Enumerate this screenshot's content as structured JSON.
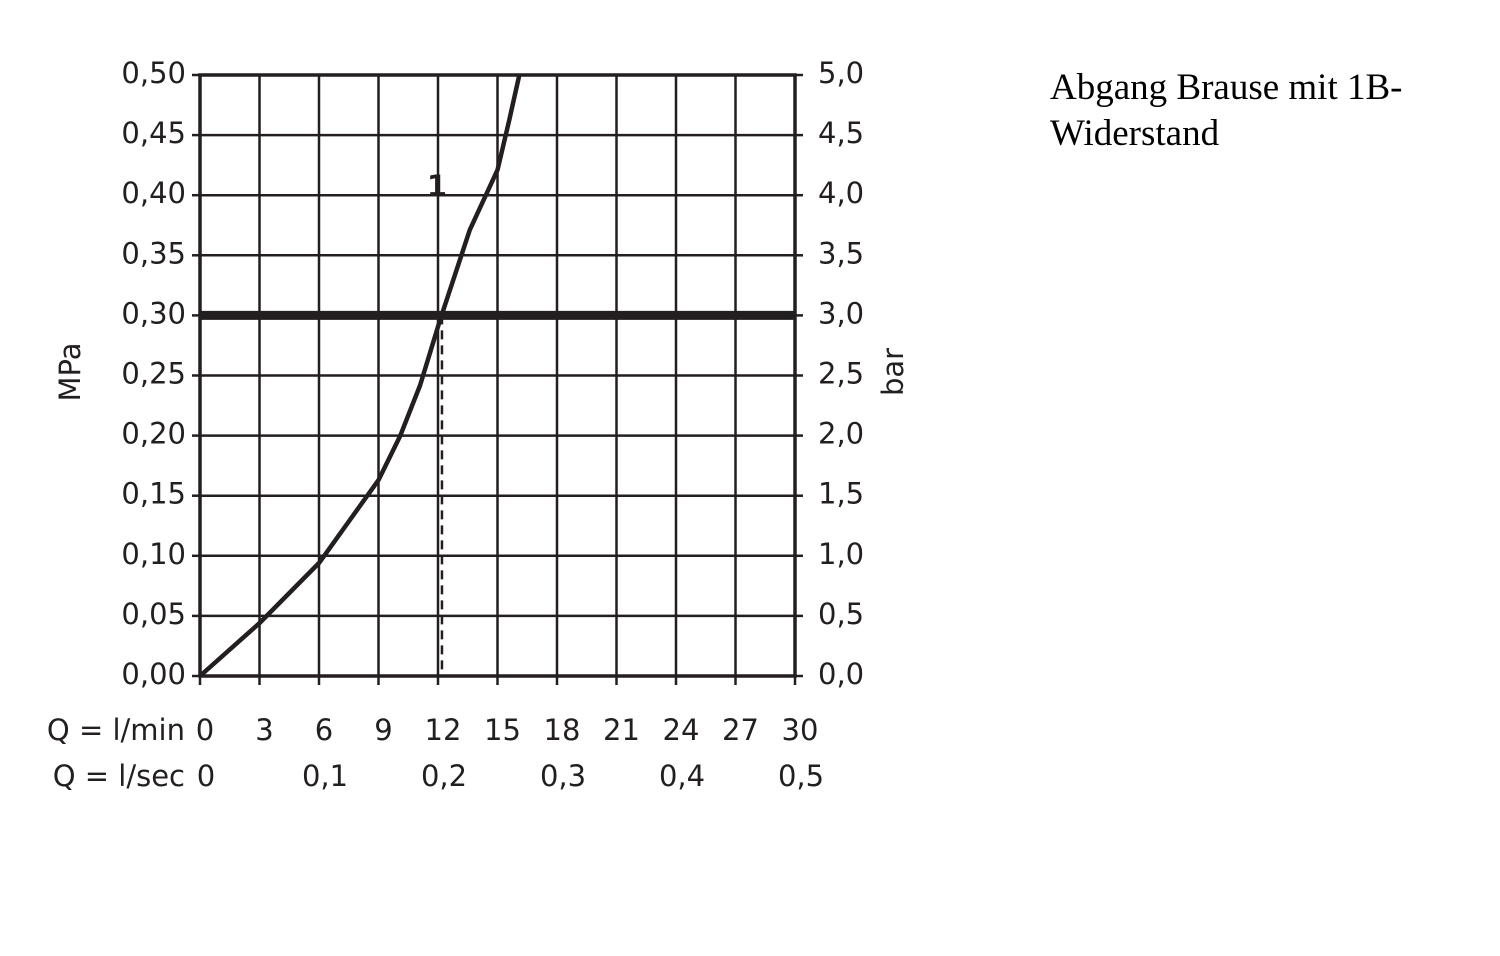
{
  "chart_data": {
    "type": "line",
    "x_label": "Q = l/min",
    "x2_label": "Q = l/sec",
    "y_label": "MPa",
    "y2_label": "bar",
    "xlim": [
      0,
      30
    ],
    "xticks": [
      0,
      3,
      6,
      9,
      12,
      15,
      18,
      21,
      24,
      27,
      30
    ],
    "x2lim": [
      0,
      0.5
    ],
    "x2ticks": [
      0,
      {
        "value": 0.1,
        "label": "0,1"
      },
      {
        "value": 0.2,
        "label": "0,2"
      },
      {
        "value": 0.3,
        "label": "0,3"
      },
      {
        "value": 0.4,
        "label": "0,4"
      },
      {
        "value": 0.5,
        "label": "0,5"
      }
    ],
    "ylim": [
      0,
      0.5
    ],
    "yticks": [
      {
        "value": 0,
        "label": "0,00"
      },
      {
        "value": 0.05,
        "label": "0,05"
      },
      {
        "value": 0.1,
        "label": "0,10"
      },
      {
        "value": 0.15,
        "label": "0,15"
      },
      {
        "value": 0.2,
        "label": "0,20"
      },
      {
        "value": 0.25,
        "label": "0,25"
      },
      {
        "value": 0.3,
        "label": "0,30"
      },
      {
        "value": 0.35,
        "label": "0,35"
      },
      {
        "value": 0.4,
        "label": "0,40"
      },
      {
        "value": 0.45,
        "label": "0,45"
      },
      {
        "value": 0.5,
        "label": "0,50"
      }
    ],
    "y2lim": [
      0,
      5
    ],
    "y2ticks": [
      {
        "value": 0,
        "label": "0,0"
      },
      {
        "value": 0.5,
        "label": "0,5"
      },
      {
        "value": 1,
        "label": "1,0"
      },
      {
        "value": 1.5,
        "label": "1,5"
      },
      {
        "value": 2,
        "label": "2,0"
      },
      {
        "value": 2.5,
        "label": "2,5"
      },
      {
        "value": 3,
        "label": "3,0"
      },
      {
        "value": 3.5,
        "label": "3,5"
      },
      {
        "value": 4,
        "label": "4,0"
      },
      {
        "value": 4.5,
        "label": "4,5"
      },
      {
        "value": 5,
        "label": "5,0"
      }
    ],
    "grid": true,
    "x": [
      0,
      3,
      6,
      9,
      10.1,
      11.1,
      12.1,
      13.6,
      15,
      15.6,
      16.1
    ],
    "series": [
      {
        "name": "1",
        "color": "#231f20",
        "values": [
          0,
          0.044,
          0.094,
          0.163,
          0.2,
          0.242,
          0.296,
          0.371,
          0.421,
          0.463,
          0.5
        ]
      }
    ],
    "reference_lines": {
      "y": 0.3,
      "x": 12.2
    },
    "note": [
      "Abgang Brause mit 1B-",
      "Widerstand"
    ]
  }
}
